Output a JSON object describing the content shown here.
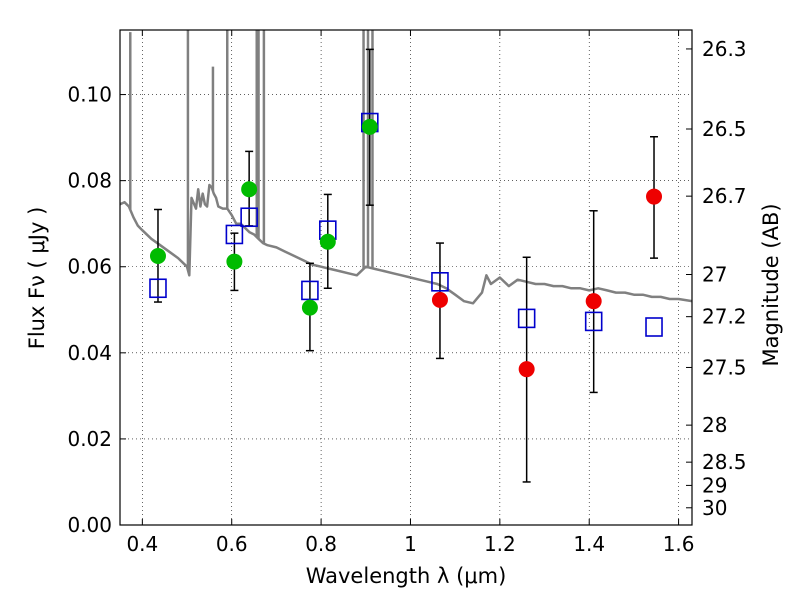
{
  "chart_data": {
    "type": "scatter",
    "title": "",
    "xlabel": "Wavelength  λ (μm)",
    "ylabel": "Flux  Fν  ( μJy )",
    "ylabel_right": "Magnitude (AB)",
    "xlim": [
      0.35,
      1.63
    ],
    "ylim": [
      0.0,
      0.115
    ],
    "grid": true,
    "x_ticks": [
      0.4,
      0.6,
      0.8,
      1.0,
      1.2,
      1.4,
      1.6
    ],
    "x_tick_labels": [
      "0.4",
      "0.6",
      "0.8",
      "1",
      "1.2",
      "1.4",
      "1.6"
    ],
    "y_ticks": [
      0.0,
      0.02,
      0.04,
      0.06,
      0.08,
      0.1
    ],
    "y_tick_labels": [
      "0.00",
      "0.02",
      "0.04",
      "0.06",
      "0.08",
      "0.10"
    ],
    "right_ticks": [
      {
        "flux": 0.1106,
        "label": "26.3"
      },
      {
        "flux": 0.092,
        "label": "26.5"
      },
      {
        "flux": 0.0764,
        "label": "26.7"
      },
      {
        "flux": 0.0582,
        "label": "27"
      },
      {
        "flux": 0.0484,
        "label": "27.2"
      },
      {
        "flux": 0.0366,
        "label": "27.5"
      },
      {
        "flux": 0.0232,
        "label": "28"
      },
      {
        "flux": 0.0146,
        "label": "28.5"
      },
      {
        "flux": 0.0092,
        "label": "29"
      },
      {
        "flux": 0.004,
        "label": "30"
      }
    ],
    "series": [
      {
        "name": "model-sed",
        "kind": "line",
        "color": "#808080",
        "x": [
          0.35,
          0.36,
          0.37,
          0.38,
          0.39,
          0.4,
          0.42,
          0.44,
          0.46,
          0.48,
          0.5,
          0.505,
          0.51,
          0.52,
          0.525,
          0.53,
          0.535,
          0.54,
          0.545,
          0.55,
          0.555,
          0.56,
          0.565,
          0.57,
          0.58,
          0.59,
          0.6,
          0.61,
          0.62,
          0.63,
          0.64,
          0.65,
          0.66,
          0.67,
          0.68,
          0.7,
          0.72,
          0.74,
          0.76,
          0.78,
          0.8,
          0.82,
          0.84,
          0.86,
          0.88,
          0.9,
          0.92,
          0.94,
          0.96,
          0.98,
          1.0,
          1.02,
          1.04,
          1.06,
          1.08,
          1.1,
          1.12,
          1.14,
          1.16,
          1.17,
          1.18,
          1.2,
          1.22,
          1.24,
          1.26,
          1.28,
          1.3,
          1.32,
          1.34,
          1.36,
          1.38,
          1.4,
          1.42,
          1.44,
          1.46,
          1.48,
          1.5,
          1.52,
          1.54,
          1.56,
          1.58,
          1.6,
          1.63
        ],
        "y": [
          0.0745,
          0.075,
          0.074,
          0.0715,
          0.0695,
          0.0685,
          0.0665,
          0.065,
          0.0635,
          0.062,
          0.06,
          0.058,
          0.076,
          0.0735,
          0.078,
          0.074,
          0.077,
          0.0745,
          0.074,
          0.079,
          0.0785,
          0.077,
          0.076,
          0.074,
          0.0735,
          0.0735,
          0.072,
          0.07,
          0.07,
          0.069,
          0.068,
          0.0675,
          0.0665,
          0.0655,
          0.065,
          0.0645,
          0.0635,
          0.0625,
          0.0615,
          0.0605,
          0.06,
          0.0595,
          0.059,
          0.0585,
          0.058,
          0.06,
          0.0595,
          0.059,
          0.0585,
          0.058,
          0.0575,
          0.057,
          0.0565,
          0.056,
          0.055,
          0.0535,
          0.052,
          0.0515,
          0.054,
          0.058,
          0.056,
          0.0575,
          0.0555,
          0.057,
          0.0565,
          0.056,
          0.056,
          0.0555,
          0.0555,
          0.055,
          0.055,
          0.0545,
          0.055,
          0.0545,
          0.054,
          0.054,
          0.0535,
          0.0535,
          0.053,
          0.053,
          0.0525,
          0.0525,
          0.052
        ]
      },
      {
        "name": "model-emission-lines",
        "kind": "spikes",
        "color": "#808080",
        "x": [
          0.373,
          0.502,
          0.558,
          0.59,
          0.59,
          0.656,
          0.66,
          0.672,
          0.895,
          0.905,
          0.915
        ],
        "y": [
          0.1145,
          0.115,
          0.1065,
          0.115,
          0.115,
          0.115,
          0.115,
          0.115,
          0.115,
          0.115,
          0.115
        ]
      },
      {
        "name": "model-photometry",
        "kind": "square-markers",
        "color": "#0000cc",
        "x": [
          0.435,
          0.606,
          0.639,
          0.775,
          0.815,
          0.909,
          1.066,
          1.26,
          1.41,
          1.545
        ],
        "y": [
          0.055,
          0.0675,
          0.0715,
          0.0545,
          0.0685,
          0.0935,
          0.0565,
          0.048,
          0.0473,
          0.046
        ]
      },
      {
        "name": "observed-optical",
        "kind": "circle-markers",
        "color": "#00bb00",
        "x": [
          0.435,
          0.606,
          0.639,
          0.775,
          0.815,
          0.909
        ],
        "y": [
          0.0625,
          0.0612,
          0.078,
          0.0505,
          0.0658,
          0.0925
        ]
      },
      {
        "name": "observed-nir",
        "kind": "circle-markers",
        "color": "#ee0000",
        "x": [
          1.066,
          1.26,
          1.41,
          1.545
        ],
        "y": [
          0.0523,
          0.0362,
          0.052,
          0.0763
        ]
      },
      {
        "name": "error-bars",
        "kind": "errorbars",
        "color": "#000000",
        "x": [
          0.435,
          0.606,
          0.639,
          0.775,
          0.815,
          0.909,
          1.066,
          1.26,
          1.41,
          1.545
        ],
        "low": [
          0.0518,
          0.0545,
          0.0695,
          0.0405,
          0.055,
          0.0743,
          0.0387,
          0.01,
          0.0308,
          0.062
        ],
        "high": [
          0.0733,
          0.0678,
          0.0868,
          0.0608,
          0.0768,
          0.1105,
          0.0655,
          0.0622,
          0.073,
          0.0902
        ]
      }
    ]
  }
}
